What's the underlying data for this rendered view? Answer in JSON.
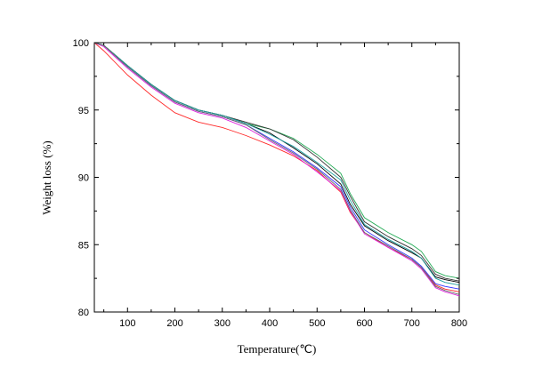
{
  "chart_data": {
    "type": "line",
    "title": "",
    "xlabel": "Temperature(℃)",
    "ylabel": "Weight loss (%)",
    "xlim": [
      30,
      800
    ],
    "ylim": [
      80,
      100
    ],
    "x_ticks": [
      100,
      200,
      300,
      400,
      500,
      600,
      700,
      800
    ],
    "y_ticks": [
      80,
      85,
      90,
      95,
      100
    ],
    "x_tick_labels": [
      "100",
      "200",
      "300",
      "400",
      "500",
      "600",
      "700",
      "800"
    ],
    "y_tick_labels": [
      "80",
      "85",
      "90",
      "95",
      "100"
    ],
    "grid": false,
    "legend": "none",
    "series": [
      {
        "color": "#ff2a2a",
        "x": [
          30,
          50,
          100,
          150,
          200,
          250,
          300,
          350,
          400,
          450,
          500,
          550,
          570,
          600,
          650,
          700,
          720,
          750,
          770,
          800
        ],
        "y": [
          100.0,
          99.4,
          97.6,
          96.1,
          94.8,
          94.1,
          93.7,
          93.1,
          92.4,
          91.6,
          90.5,
          88.9,
          87.4,
          85.9,
          84.8,
          83.9,
          83.3,
          82.0,
          81.7,
          81.5
        ]
      },
      {
        "color": "#000000",
        "x": [
          30,
          50,
          100,
          150,
          200,
          250,
          300,
          350,
          400,
          450,
          500,
          550,
          570,
          600,
          650,
          700,
          720,
          750,
          770,
          800
        ],
        "y": [
          100.0,
          99.8,
          98.3,
          96.9,
          95.7,
          95.0,
          94.6,
          94.0,
          93.3,
          92.2,
          91.0,
          89.5,
          88.0,
          86.4,
          85.3,
          84.4,
          84.0,
          82.6,
          82.4,
          82.2
        ]
      },
      {
        "color": "#3333ff",
        "x": [
          30,
          50,
          100,
          150,
          200,
          250,
          300,
          350,
          400,
          450,
          500,
          550,
          570,
          600,
          650,
          700,
          720,
          750,
          770,
          800
        ],
        "y": [
          100.0,
          99.8,
          98.2,
          96.8,
          95.6,
          94.9,
          94.5,
          93.9,
          92.9,
          91.9,
          90.7,
          89.3,
          87.8,
          86.1,
          85.0,
          84.0,
          83.4,
          82.1,
          81.9,
          81.7
        ]
      },
      {
        "color": "#dd22dd",
        "x": [
          30,
          50,
          100,
          150,
          200,
          250,
          300,
          350,
          400,
          450,
          500,
          550,
          570,
          600,
          650,
          700,
          720,
          750,
          770,
          800
        ],
        "y": [
          100.0,
          99.7,
          98.1,
          96.7,
          95.5,
          94.8,
          94.4,
          93.7,
          92.7,
          91.7,
          90.4,
          89.0,
          87.5,
          85.8,
          84.8,
          83.8,
          83.2,
          81.8,
          81.5,
          81.2
        ]
      },
      {
        "color": "#22aa55",
        "x": [
          30,
          50,
          100,
          150,
          200,
          250,
          300,
          350,
          400,
          450,
          500,
          550,
          570,
          600,
          650,
          700,
          720,
          750,
          770,
          800
        ],
        "y": [
          100.0,
          99.8,
          98.3,
          96.9,
          95.7,
          95.0,
          94.6,
          94.0,
          93.6,
          92.9,
          91.7,
          90.3,
          88.8,
          87.0,
          85.9,
          85.0,
          84.5,
          83.0,
          82.7,
          82.5
        ]
      },
      {
        "color": "#333333",
        "x": [
          30,
          50,
          100,
          150,
          200,
          250,
          300,
          350,
          400,
          450,
          500,
          550,
          570,
          600,
          650,
          700,
          720,
          750,
          770,
          800
        ],
        "y": [
          100.0,
          99.8,
          98.3,
          96.9,
          95.7,
          95.0,
          94.6,
          94.1,
          93.6,
          92.8,
          91.5,
          90.0,
          88.6,
          86.7,
          85.6,
          84.7,
          84.2,
          82.8,
          82.5,
          82.3
        ]
      },
      {
        "color": "#20a0a0",
        "x": [
          30,
          50,
          100,
          150,
          200,
          250,
          300,
          350,
          400,
          450,
          500,
          550,
          570,
          600,
          650,
          700,
          720,
          750,
          770,
          800
        ],
        "y": [
          100.0,
          99.8,
          98.3,
          96.9,
          95.7,
          95.0,
          94.6,
          94.0,
          93.2,
          92.3,
          91.1,
          89.8,
          88.3,
          86.5,
          85.4,
          84.5,
          84.0,
          82.5,
          82.2,
          82.0
        ]
      },
      {
        "color": "#666666",
        "x": [
          30,
          50,
          100,
          150,
          200,
          250,
          300,
          350,
          400,
          450,
          500,
          550,
          570,
          600,
          650,
          700,
          720,
          750,
          770,
          800
        ],
        "y": [
          100.0,
          99.8,
          98.2,
          96.8,
          95.6,
          94.9,
          94.5,
          93.9,
          92.8,
          91.8,
          90.6,
          89.1,
          87.6,
          85.9,
          84.9,
          83.9,
          83.3,
          81.9,
          81.6,
          81.3
        ]
      }
    ]
  }
}
